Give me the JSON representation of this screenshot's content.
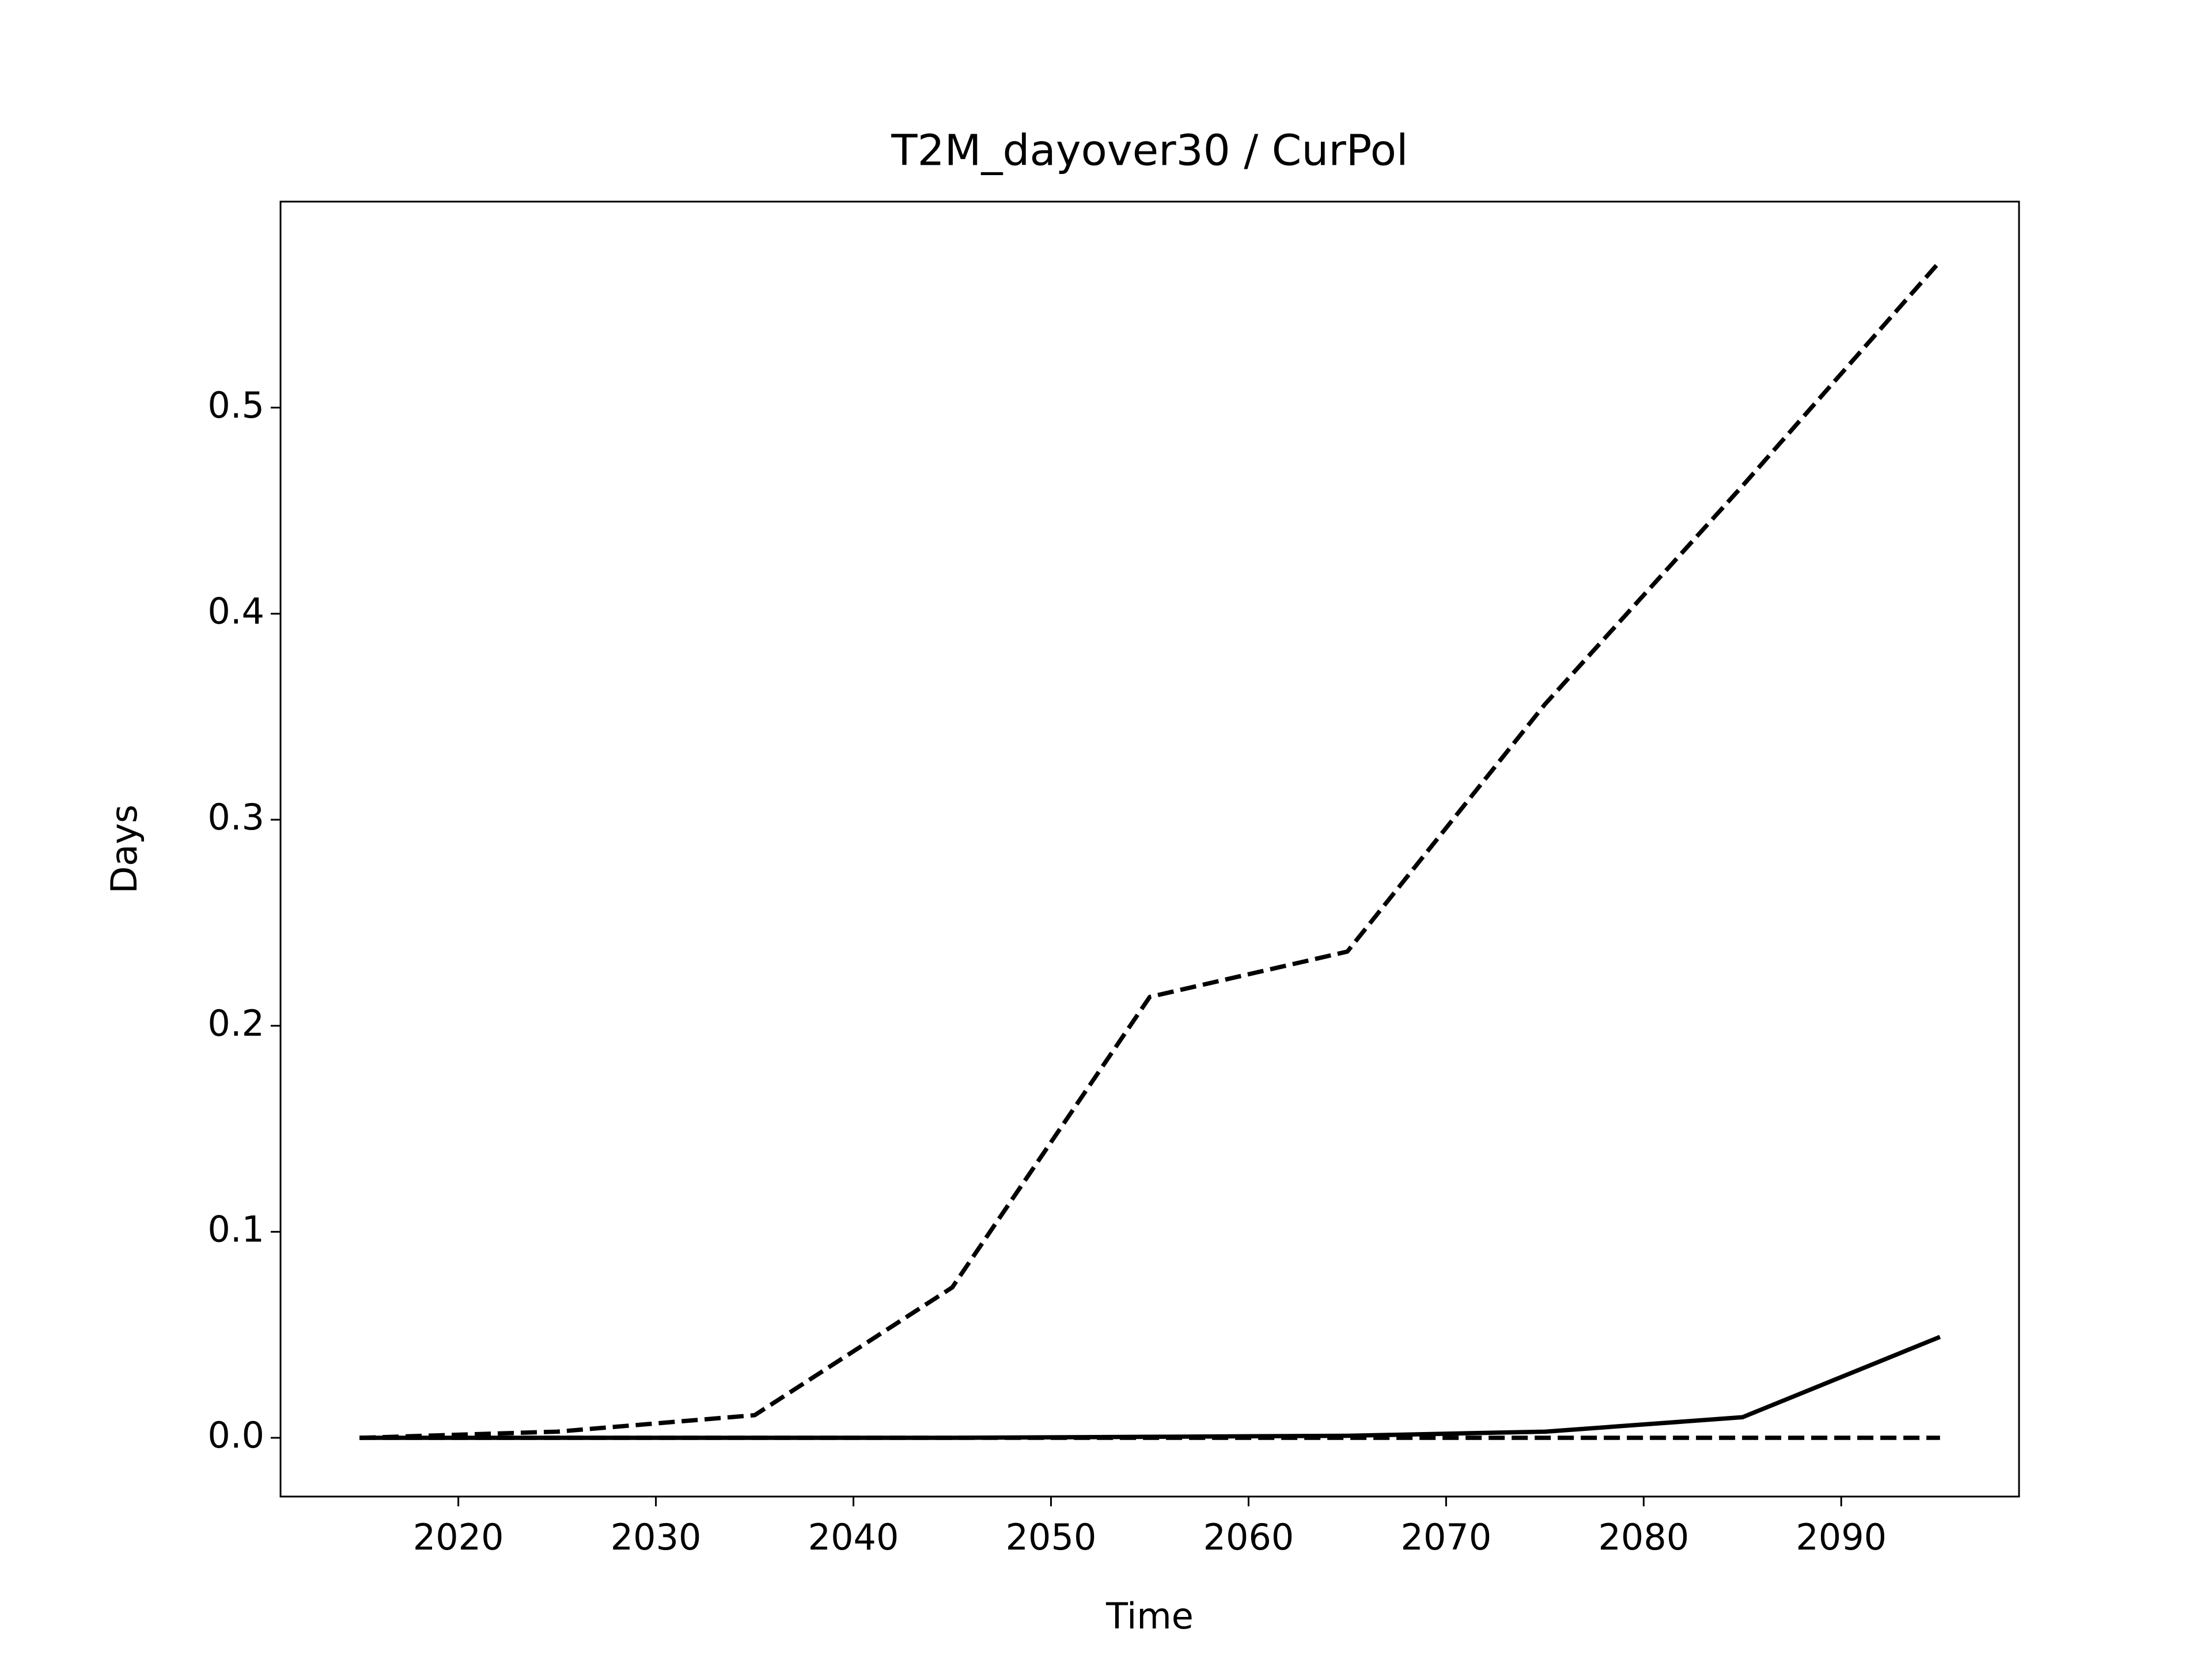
{
  "chart_data": {
    "type": "line",
    "title": "T2M_dayover30 / CurPol",
    "xlabel": "Time",
    "ylabel": "Days",
    "x": [
      2015,
      2025,
      2035,
      2045,
      2055,
      2065,
      2075,
      2085,
      2095
    ],
    "series": [
      {
        "color": "#000000",
        "dash": true,
        "values": [
          0.0,
          0.003,
          0.011,
          0.073,
          0.214,
          0.236,
          0.356,
          0.462,
          0.571
        ]
      },
      {
        "color": "#000000",
        "dash": false,
        "values": [
          0.0,
          0.0,
          0.0,
          0.0,
          0.0005,
          0.001,
          0.003,
          0.01,
          0.049
        ]
      },
      {
        "color": "#000000",
        "dash": true,
        "values": [
          0.0,
          0.0,
          0.0,
          0.0,
          0.0,
          0.0,
          0.0,
          0.0,
          0.0
        ]
      }
    ],
    "xlim": [
      2011,
      2099
    ],
    "ylim": [
      -0.0285,
      0.6
    ],
    "xticks": [
      2020,
      2030,
      2040,
      2050,
      2060,
      2070,
      2080,
      2090
    ],
    "yticks": [
      {
        "value": 0,
        "label": "0.0"
      },
      0.1,
      0.2,
      0.3,
      0.4,
      0.5
    ],
    "grid": false
  }
}
